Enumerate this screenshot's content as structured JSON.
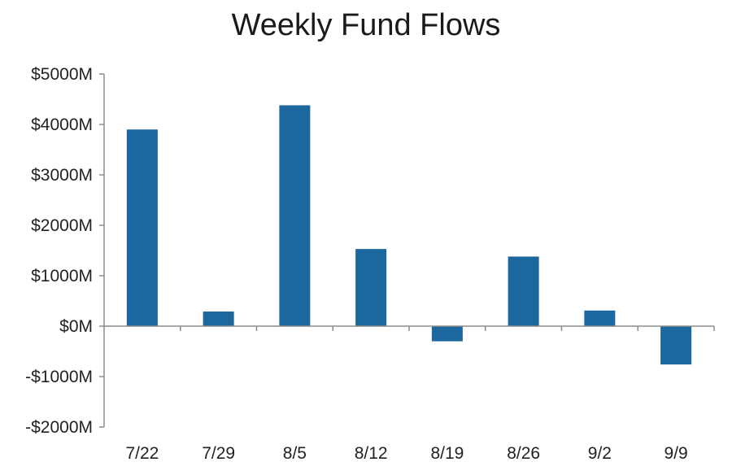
{
  "chart_data": {
    "type": "bar",
    "title": "Weekly Fund Flows",
    "xlabel": "",
    "ylabel": "",
    "categories": [
      "7/22",
      "7/29",
      "8/5",
      "8/12",
      "8/19",
      "8/26",
      "9/2",
      "9/9"
    ],
    "values": [
      3900,
      290,
      4380,
      1530,
      -300,
      1380,
      310,
      -760
    ],
    "unit": "M",
    "ylim": [
      -2000,
      5000
    ],
    "yticks": [
      5000,
      4000,
      3000,
      2000,
      1000,
      0,
      -1000,
      -2000
    ],
    "ytick_labels": [
      "$5000M",
      "$4000M",
      "$3000M",
      "$2000M",
      "$1000M",
      "$0M",
      "-$1000M",
      "-$2000M"
    ],
    "bar_color": "#1b679e",
    "grid": false,
    "legend": "none"
  }
}
